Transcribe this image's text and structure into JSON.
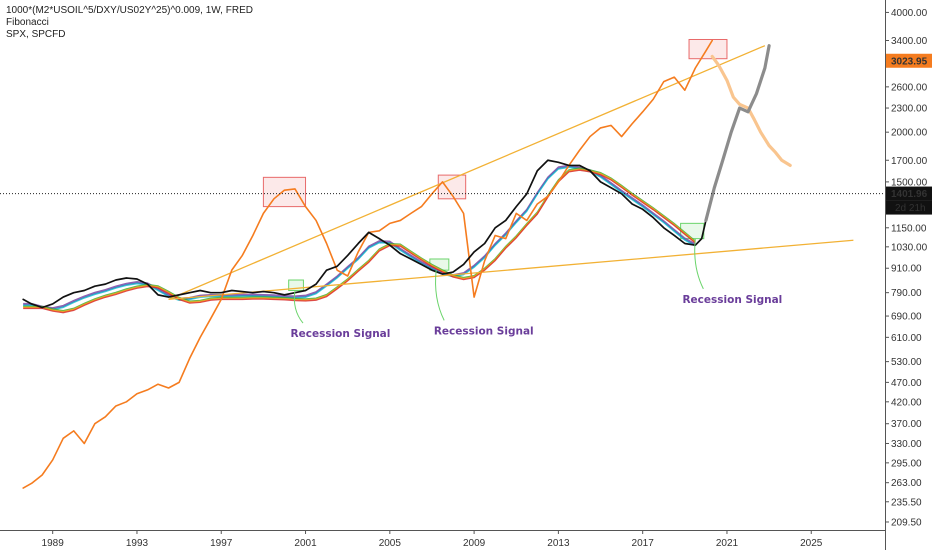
{
  "legend": {
    "line1": "1000*(M2*USOIL^5/DXY/US02Y^25)^0.009, 1W, FRED",
    "line2": "Fibonacci",
    "line3": "SPX, SPCFD"
  },
  "price_labels": {
    "spx": "3023.95",
    "index": "1401.96",
    "countdown": "2d 21h"
  },
  "annotations": [
    "Recession Signal",
    "Recession Signal",
    "Recession Signal"
  ],
  "colors": {
    "spx": "#f57c1f",
    "spx_projection": "#f9c58f",
    "index": "#111111",
    "index_projection": "#8c8c8c",
    "trendline": "#f2b134",
    "box_top": "#e86a6a",
    "box_signal": "#6bd46b",
    "signal_text": "#6a3d9a"
  },
  "chart_data": {
    "type": "line",
    "y_scale": "log",
    "ylim": [
      200,
      4200
    ],
    "xlim": [
      1986.5,
      2028.5
    ],
    "y_ticks": [
      "4000.00",
      "3400.00",
      "3023.95",
      "2600.00",
      "2300.00",
      "2000.00",
      "1700.00",
      "1500.00",
      "1401.96",
      "1150.00",
      "1030.00",
      "910.00",
      "790.00",
      "690.00",
      "610.00",
      "530.00",
      "470.00",
      "420.00",
      "370.00",
      "330.00",
      "295.00",
      "263.00",
      "235.50",
      "209.50"
    ],
    "x_ticks": [
      "1989",
      "1993",
      "1997",
      "2001",
      "2005",
      "2009",
      "2013",
      "2017",
      "2021",
      "2025"
    ],
    "series": [
      {
        "name": "SPX, SPCFD",
        "color": "#f57c1f",
        "x": [
          1987.6,
          1988.0,
          1988.5,
          1989.0,
          1989.5,
          1990.0,
          1990.5,
          1991.0,
          1991.5,
          1992.0,
          1992.5,
          1993.0,
          1993.5,
          1994.0,
          1994.5,
          1995.0,
          1995.5,
          1996.0,
          1996.5,
          1997.0,
          1997.5,
          1998.0,
          1998.5,
          1999.0,
          1999.5,
          2000.0,
          2000.5,
          2001.0,
          2001.5,
          2002.0,
          2002.5,
          2003.0,
          2003.5,
          2004.0,
          2004.5,
          2005.0,
          2005.5,
          2006.0,
          2006.5,
          2007.0,
          2007.5,
          2008.0,
          2008.5,
          2009.0,
          2009.5,
          2010.0,
          2010.5,
          2011.0,
          2011.5,
          2012.0,
          2012.5,
          2013.0,
          2013.5,
          2014.0,
          2014.5,
          2015.0,
          2015.5,
          2016.0,
          2016.5,
          2017.0,
          2017.5,
          2018.0,
          2018.5,
          2019.0,
          2019.5,
          2020.0,
          2020.3
        ],
        "y": [
          255,
          262,
          275,
          300,
          340,
          355,
          330,
          370,
          385,
          410,
          420,
          440,
          450,
          465,
          455,
          470,
          540,
          610,
          680,
          760,
          900,
          980,
          1100,
          1250,
          1360,
          1430,
          1440,
          1300,
          1200,
          1050,
          900,
          870,
          1000,
          1120,
          1130,
          1180,
          1200,
          1250,
          1300,
          1400,
          1500,
          1380,
          1250,
          770,
          950,
          1100,
          1080,
          1250,
          1200,
          1320,
          1380,
          1500,
          1650,
          1800,
          1950,
          2050,
          2080,
          1950,
          2100,
          2250,
          2420,
          2680,
          2750,
          2550,
          2900,
          3200,
          3400
        ]
      },
      {
        "name": "SPX projection",
        "color": "#f9c58f",
        "x": [
          2020.3,
          2020.6,
          2021.0,
          2021.3,
          2021.6,
          2022.0,
          2022.3,
          2022.6,
          2023.0,
          2023.3,
          2023.6,
          2024.0
        ],
        "y": [
          3100,
          2950,
          2700,
          2450,
          2350,
          2300,
          2150,
          2000,
          1850,
          1780,
          1700,
          1650
        ]
      },
      {
        "name": "1000*(M2*USOIL^5/DXY/US02Y^25)^0.009",
        "color": "#111111",
        "x": [
          1987.6,
          1988.0,
          1988.5,
          1989.0,
          1989.5,
          1990.0,
          1990.5,
          1991.0,
          1991.5,
          1992.0,
          1992.5,
          1993.0,
          1993.5,
          1994.0,
          1994.5,
          1995.0,
          1995.5,
          1996.0,
          1996.5,
          1997.0,
          1997.5,
          1998.0,
          1998.5,
          1999.0,
          1999.5,
          2000.0,
          2000.5,
          2001.0,
          2001.5,
          2002.0,
          2002.5,
          2003.0,
          2003.5,
          2004.0,
          2004.5,
          2005.0,
          2005.5,
          2006.0,
          2006.5,
          2007.0,
          2007.5,
          2008.0,
          2008.5,
          2009.0,
          2009.5,
          2010.0,
          2010.5,
          2011.0,
          2011.5,
          2012.0,
          2012.5,
          2013.0,
          2013.5,
          2014.0,
          2014.5,
          2015.0,
          2015.5,
          2016.0,
          2016.5,
          2017.0,
          2017.5,
          2018.0,
          2018.5,
          2019.0,
          2019.5,
          2019.8,
          2020.0
        ],
        "y": [
          760,
          740,
          725,
          740,
          770,
          790,
          800,
          820,
          830,
          850,
          860,
          855,
          830,
          780,
          770,
          780,
          790,
          800,
          790,
          790,
          800,
          795,
          790,
          795,
          790,
          780,
          790,
          800,
          830,
          900,
          920,
          980,
          1050,
          1120,
          1080,
          1040,
          990,
          960,
          930,
          900,
          880,
          890,
          930,
          1000,
          1050,
          1150,
          1200,
          1300,
          1400,
          1600,
          1700,
          1680,
          1650,
          1650,
          1600,
          1500,
          1450,
          1400,
          1320,
          1280,
          1220,
          1150,
          1100,
          1050,
          1040,
          1080,
          1200
        ]
      },
      {
        "name": "Index projection",
        "color": "#8c8c8c",
        "x": [
          2020.0,
          2020.4,
          2020.8,
          2021.2,
          2021.6,
          2022.0,
          2022.4,
          2022.8,
          2023.0
        ],
        "y": [
          1200,
          1450,
          1700,
          2000,
          2300,
          2250,
          2500,
          2900,
          3300
        ]
      }
    ],
    "trendlines": [
      {
        "x": [
          1994.5,
          2022.8
        ],
        "y": [
          760,
          3300
        ]
      },
      {
        "x": [
          1994.5,
          2027.0
        ],
        "y": [
          760,
          1070
        ]
      }
    ],
    "annotations": [
      {
        "text": "Recession Signal",
        "x": 2001.0,
        "y": 640
      },
      {
        "text": "Recession Signal",
        "x": 2007.8,
        "y": 650
      },
      {
        "text": "Recession Signal",
        "x": 2019.6,
        "y": 780
      }
    ]
  }
}
